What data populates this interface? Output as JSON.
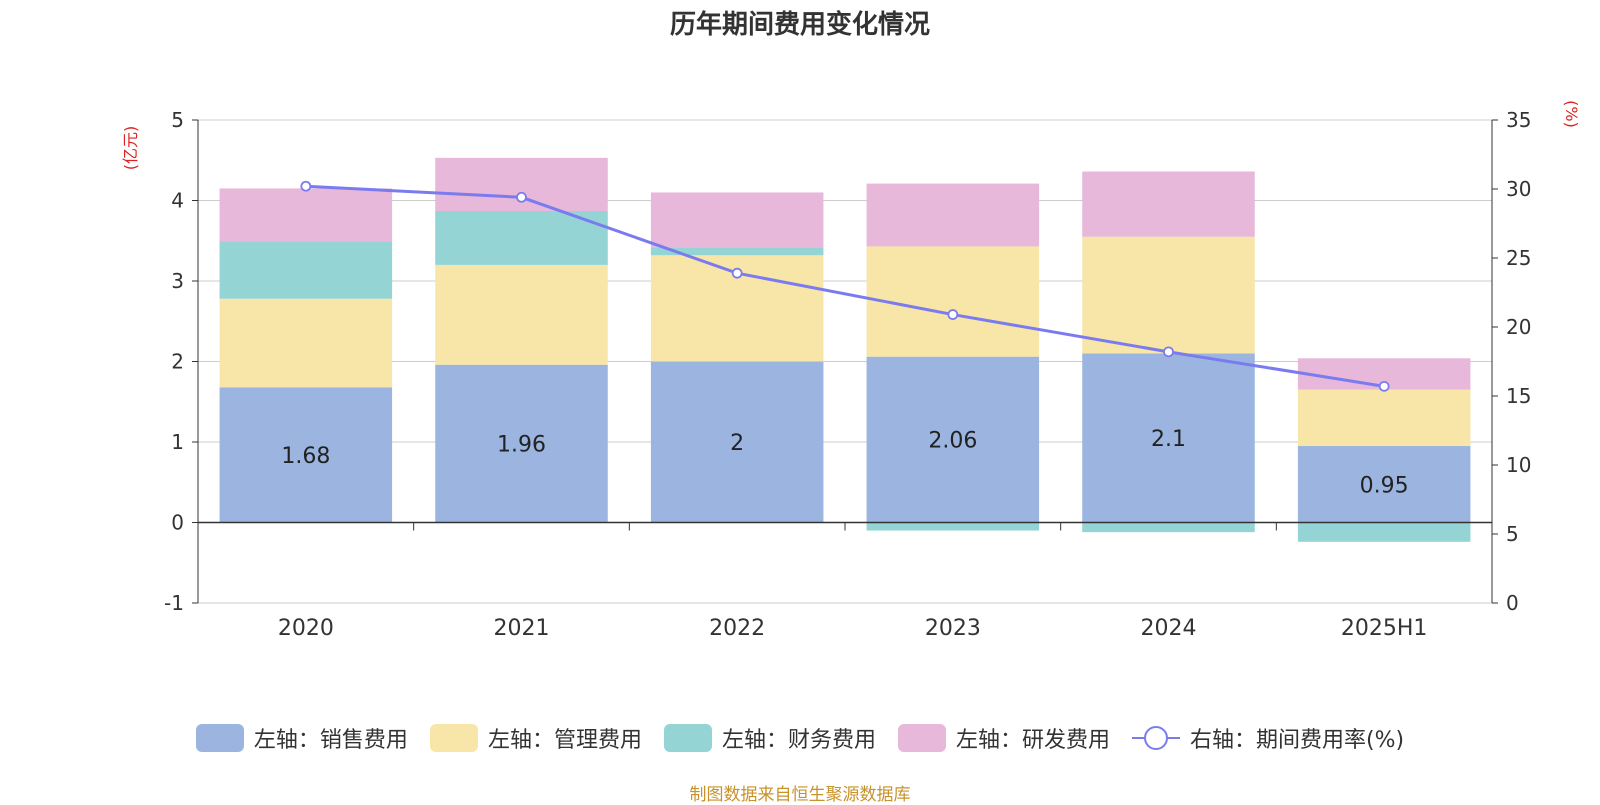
{
  "chart_data": {
    "type": "bar",
    "title": "历年期间费用变化情况",
    "categories": [
      "2020",
      "2021",
      "2022",
      "2023",
      "2024",
      "2025H1"
    ],
    "stacked": true,
    "left_axis": {
      "unit": "(亿元)",
      "range": [
        -1,
        5
      ],
      "ticks": [
        "-1",
        "0",
        "1",
        "2",
        "3",
        "4",
        "5"
      ]
    },
    "right_axis": {
      "unit": "(%)",
      "range": [
        0,
        35
      ],
      "ticks": [
        "0",
        "5",
        "10",
        "15",
        "20",
        "25",
        "30",
        "35"
      ]
    },
    "series": [
      {
        "name": "左轴：销售费用",
        "axis": "left",
        "kind": "bar",
        "color": "#9bb5e0",
        "values": [
          1.68,
          1.96,
          2,
          2.06,
          2.1,
          0.95
        ],
        "labels": [
          "1.68",
          "1.96",
          "2",
          "2.06",
          "2.1",
          "0.95"
        ]
      },
      {
        "name": "左轴：管理费用",
        "axis": "left",
        "kind": "bar",
        "color": "#f7e6a7",
        "values": [
          1.1,
          1.24,
          1.32,
          1.37,
          1.45,
          0.7
        ]
      },
      {
        "name": "左轴：财务费用",
        "axis": "left",
        "kind": "bar",
        "color": "#94d4d4",
        "values": [
          0.71,
          0.67,
          0.1,
          -0.1,
          -0.12,
          -0.24
        ]
      },
      {
        "name": "左轴：研发费用",
        "axis": "left",
        "kind": "bar",
        "color": "#e7b8d9",
        "values": [
          0.66,
          0.66,
          0.68,
          0.78,
          0.81,
          0.39
        ]
      },
      {
        "name": "右轴：期间费用率(%)",
        "axis": "right",
        "kind": "line",
        "color": "#7b7bf0",
        "values": [
          30.2,
          29.4,
          23.9,
          20.9,
          18.2,
          15.7
        ]
      }
    ],
    "grid": true,
    "legend_position": "bottom"
  },
  "footer": {
    "source": "制图数据来自恒生聚源数据库",
    "source_color": "#c8922a"
  },
  "colors": {
    "axis_unit": "#e02020",
    "text": "#333333",
    "grid": "#cccccc"
  }
}
